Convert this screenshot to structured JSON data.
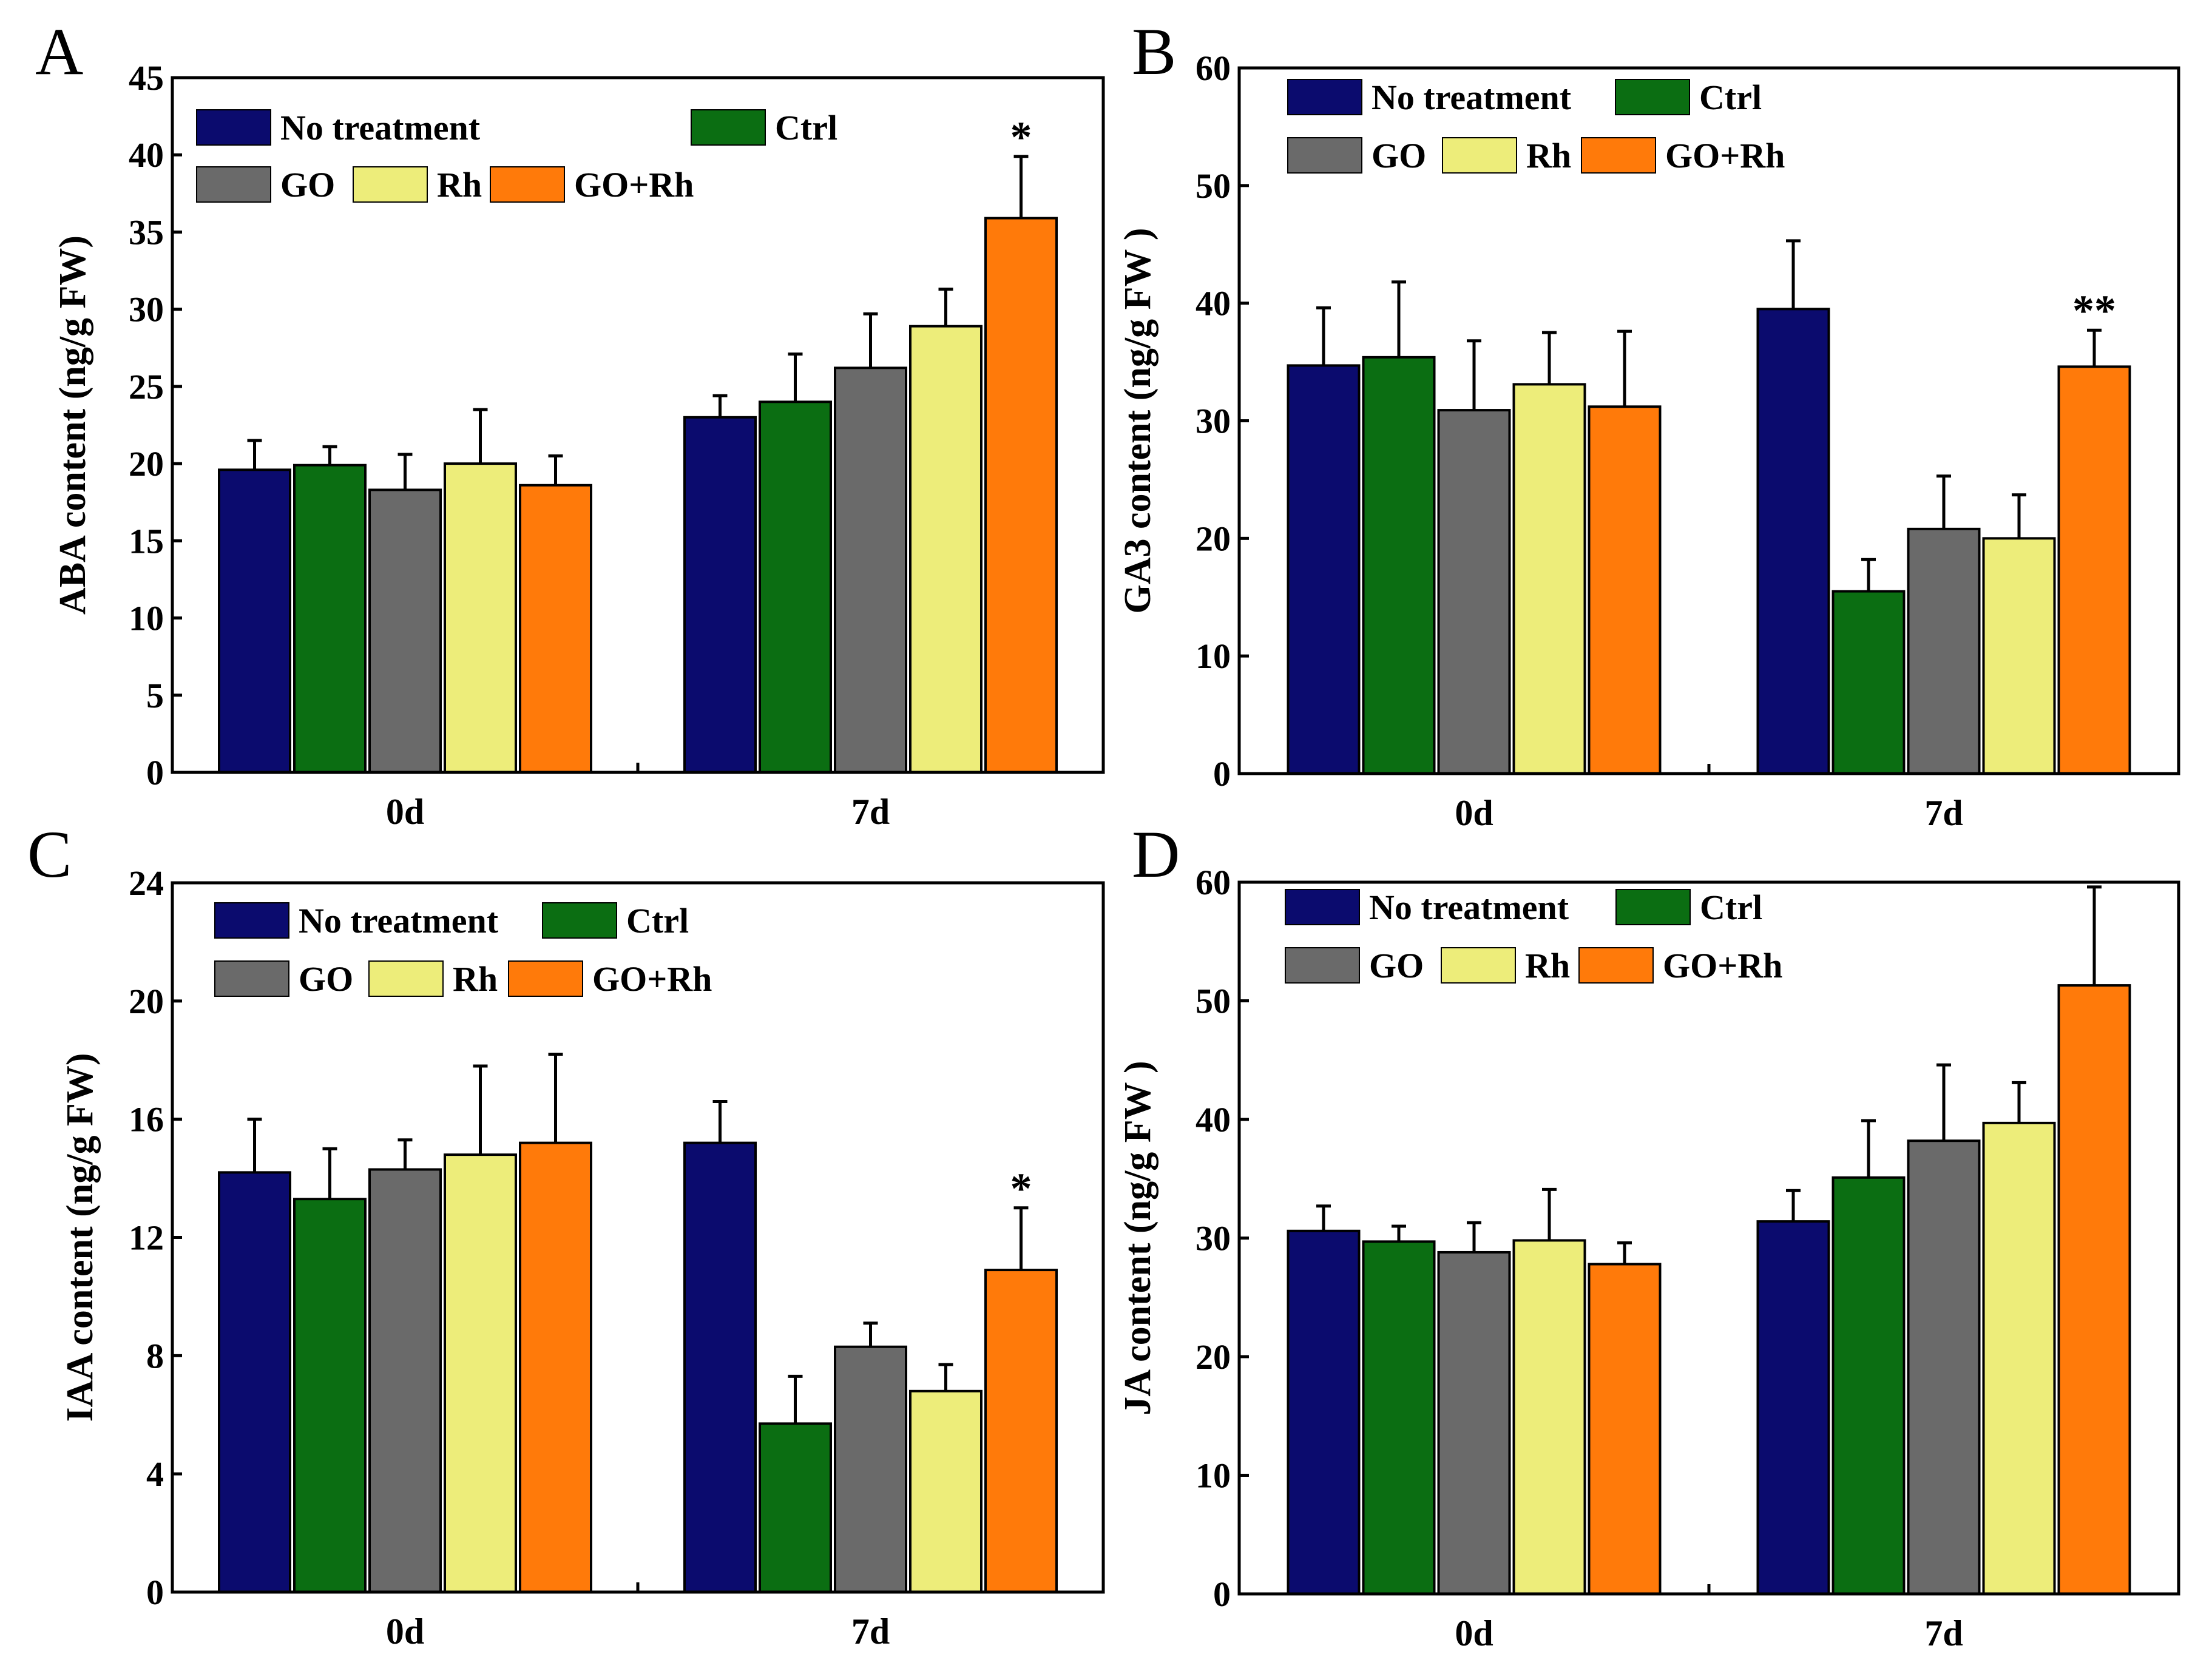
{
  "colors": {
    "No treatment": "#0b0b6e",
    "Ctrl": "#0b6e12",
    "GO": "#6a6a6a",
    "Rh": "#eded7a",
    "GO+Rh": "#ff7a0a"
  },
  "chart_data": [
    {
      "panel": "A",
      "type": "bar",
      "categories": [
        "0d",
        "7d"
      ],
      "ylabel": "ABA content (ng/g FW)",
      "ylim": [
        0,
        45
      ],
      "yticks": [
        0,
        5,
        10,
        15,
        20,
        25,
        30,
        35,
        40,
        45
      ],
      "legend": [
        [
          "No treatment",
          "Ctrl"
        ],
        [
          "GO",
          "Rh",
          "GO+Rh"
        ]
      ],
      "series": [
        {
          "name": "No treatment",
          "values": [
            19.6,
            23.0
          ],
          "errors": [
            1.9,
            1.4
          ]
        },
        {
          "name": "Ctrl",
          "values": [
            19.9,
            24.0
          ],
          "errors": [
            1.2,
            3.1
          ]
        },
        {
          "name": "GO",
          "values": [
            18.3,
            26.2
          ],
          "errors": [
            2.3,
            3.5
          ]
        },
        {
          "name": "Rh",
          "values": [
            20.0,
            28.9
          ],
          "errors": [
            3.5,
            2.4
          ]
        },
        {
          "name": "GO+Rh",
          "values": [
            18.6,
            35.9
          ],
          "errors": [
            1.9,
            4.0
          ]
        }
      ],
      "significance": [
        {
          "category": "7d",
          "series": "GO+Rh",
          "label": "*"
        }
      ]
    },
    {
      "panel": "B",
      "type": "bar",
      "categories": [
        "0d",
        "7d"
      ],
      "ylabel": "GA3 content (ng/g FW )",
      "ylim": [
        0,
        60
      ],
      "yticks": [
        0,
        10,
        20,
        30,
        40,
        50,
        60
      ],
      "legend": [
        [
          "No treatment",
          "Ctrl"
        ],
        [
          "GO",
          "Rh",
          "GO+Rh"
        ]
      ],
      "series": [
        {
          "name": "No treatment",
          "values": [
            34.7,
            39.5
          ],
          "errors": [
            4.9,
            5.8
          ]
        },
        {
          "name": "Ctrl",
          "values": [
            35.4,
            15.5
          ],
          "errors": [
            6.4,
            2.7
          ]
        },
        {
          "name": "GO",
          "values": [
            30.9,
            20.8
          ],
          "errors": [
            5.9,
            4.5
          ]
        },
        {
          "name": "Rh",
          "values": [
            33.1,
            20.0
          ],
          "errors": [
            4.4,
            3.7
          ]
        },
        {
          "name": "GO+Rh",
          "values": [
            31.2,
            34.6
          ],
          "errors": [
            6.4,
            3.1
          ]
        }
      ],
      "significance": [
        {
          "category": "7d",
          "series": "GO+Rh",
          "label": "**"
        }
      ]
    },
    {
      "panel": "C",
      "type": "bar",
      "categories": [
        "0d",
        "7d"
      ],
      "ylabel": "IAA content (ng/g FW)",
      "ylim": [
        0,
        24
      ],
      "yticks": [
        0,
        4,
        8,
        12,
        16,
        20,
        24
      ],
      "legend": [
        [
          "No treatment",
          "Ctrl"
        ],
        [
          "GO",
          "Rh",
          "GO+Rh"
        ]
      ],
      "series": [
        {
          "name": "No treatment",
          "values": [
            14.2,
            15.2
          ],
          "errors": [
            1.8,
            1.4
          ]
        },
        {
          "name": "Ctrl",
          "values": [
            13.3,
            5.7
          ],
          "errors": [
            1.7,
            1.6
          ]
        },
        {
          "name": "GO",
          "values": [
            14.3,
            8.3
          ],
          "errors": [
            1.0,
            0.8
          ]
        },
        {
          "name": "Rh",
          "values": [
            14.8,
            6.8
          ],
          "errors": [
            3.0,
            0.9
          ]
        },
        {
          "name": "GO+Rh",
          "values": [
            15.2,
            10.9
          ],
          "errors": [
            3.0,
            2.1
          ]
        }
      ],
      "significance": [
        {
          "category": "7d",
          "series": "GO+Rh",
          "label": "*"
        }
      ]
    },
    {
      "panel": "D",
      "type": "bar",
      "categories": [
        "0d",
        "7d"
      ],
      "ylabel": "JA content (ng/g FW )",
      "ylim": [
        0,
        60
      ],
      "yticks": [
        0,
        10,
        20,
        30,
        40,
        50,
        60
      ],
      "legend": [
        [
          "No treatment",
          "Ctrl"
        ],
        [
          "GO",
          "Rh",
          "GO+Rh"
        ]
      ],
      "series": [
        {
          "name": "No treatment",
          "values": [
            30.6,
            31.4
          ],
          "errors": [
            2.1,
            2.6
          ]
        },
        {
          "name": "Ctrl",
          "values": [
            29.7,
            35.1
          ],
          "errors": [
            1.3,
            4.8
          ]
        },
        {
          "name": "GO",
          "values": [
            28.8,
            38.2
          ],
          "errors": [
            2.5,
            6.4
          ]
        },
        {
          "name": "Rh",
          "values": [
            29.8,
            39.7
          ],
          "errors": [
            4.3,
            3.4
          ]
        },
        {
          "name": "GO+Rh",
          "values": [
            27.8,
            51.3
          ],
          "errors": [
            1.8,
            8.3
          ]
        }
      ],
      "significance": []
    }
  ]
}
